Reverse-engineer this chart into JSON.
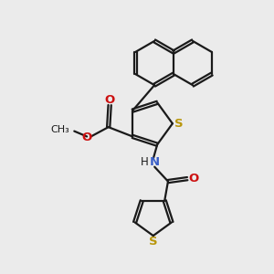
{
  "bg_color": "#ebebeb",
  "bond_color": "#1a1a1a",
  "bond_width": 1.6,
  "dbo": 0.055,
  "S_color": "#b8960c",
  "N_color": "#3a5fc8",
  "O_color": "#cc1111",
  "figsize": [
    3.0,
    3.0
  ],
  "dpi": 100,
  "xlim": [
    0,
    10
  ],
  "ylim": [
    0,
    10
  ]
}
